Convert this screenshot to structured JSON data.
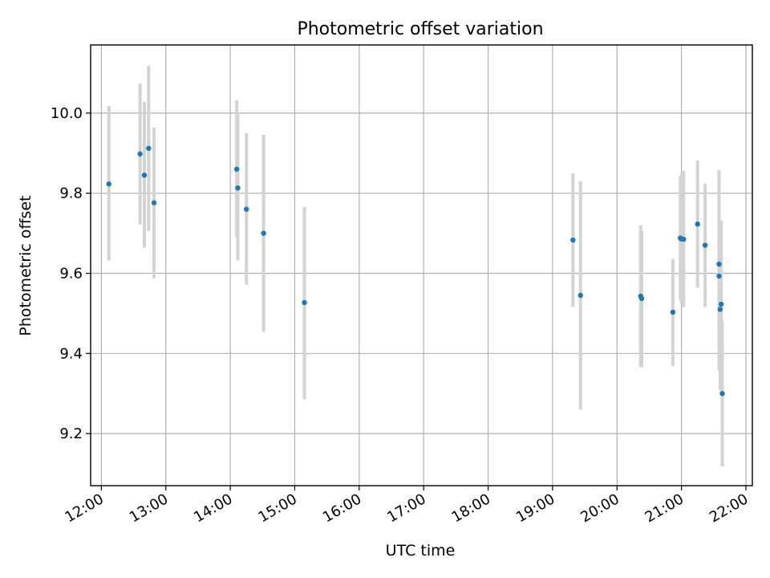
{
  "chart_data": {
    "type": "scatter",
    "title": "Photometric offset variation",
    "xlabel": "UTC time",
    "ylabel": "Photometric offset",
    "xlim": [
      "11:50",
      "22:06"
    ],
    "ylim": [
      9.07,
      10.17
    ],
    "grid": true,
    "x_ticks": [
      "12:00",
      "13:00",
      "14:00",
      "15:00",
      "16:00",
      "17:00",
      "18:00",
      "19:00",
      "20:00",
      "21:00",
      "22:00"
    ],
    "y_ticks": [
      9.2,
      9.4,
      9.6,
      9.8,
      10.0
    ],
    "y_tick_labels": [
      "9.2",
      "9.4",
      "9.6",
      "9.8",
      "10.0"
    ],
    "marker_color": "#1f77b4",
    "errorbar_color": "#d3d3d3",
    "points": [
      {
        "x": "12:07",
        "y": 9.823,
        "lo": 9.632,
        "hi": 10.018
      },
      {
        "x": "12:36",
        "y": 9.898,
        "lo": 9.722,
        "hi": 10.074
      },
      {
        "x": "12:40",
        "y": 9.845,
        "lo": 9.664,
        "hi": 10.028
      },
      {
        "x": "12:44",
        "y": 9.912,
        "lo": 9.706,
        "hi": 10.118
      },
      {
        "x": "12:49",
        "y": 9.776,
        "lo": 9.588,
        "hi": 9.964
      },
      {
        "x": "14:06",
        "y": 9.86,
        "lo": 9.69,
        "hi": 10.032
      },
      {
        "x": "14:07",
        "y": 9.813,
        "lo": 9.632,
        "hi": 9.996
      },
      {
        "x": "14:15",
        "y": 9.76,
        "lo": 9.572,
        "hi": 9.95
      },
      {
        "x": "14:31",
        "y": 9.7,
        "lo": 9.454,
        "hi": 9.946
      },
      {
        "x": "15:09",
        "y": 9.527,
        "lo": 9.286,
        "hi": 9.766
      },
      {
        "x": "19:19",
        "y": 9.683,
        "lo": 9.516,
        "hi": 9.85
      },
      {
        "x": "19:26",
        "y": 9.545,
        "lo": 9.26,
        "hi": 9.83
      },
      {
        "x": "20:22",
        "y": 9.543,
        "lo": 9.366,
        "hi": 9.72
      },
      {
        "x": "20:23",
        "y": 9.537,
        "lo": 9.366,
        "hi": 9.706
      },
      {
        "x": "20:52",
        "y": 9.503,
        "lo": 9.368,
        "hi": 9.636
      },
      {
        "x": "20:59",
        "y": 9.688,
        "lo": 9.534,
        "hi": 9.842
      },
      {
        "x": "21:00",
        "y": 9.686,
        "lo": 9.524,
        "hi": 9.848
      },
      {
        "x": "21:02",
        "y": 9.685,
        "lo": 9.516,
        "hi": 9.856
      },
      {
        "x": "21:15",
        "y": 9.723,
        "lo": 9.564,
        "hi": 9.882
      },
      {
        "x": "21:22",
        "y": 9.67,
        "lo": 9.516,
        "hi": 9.824
      },
      {
        "x": "21:35",
        "y": 9.623,
        "lo": 9.388,
        "hi": 9.858
      },
      {
        "x": "21:35",
        "y": 9.593,
        "lo": 9.358,
        "hi": 9.828
      },
      {
        "x": "21:36",
        "y": 9.51,
        "lo": 9.31,
        "hi": 9.71
      },
      {
        "x": "21:37",
        "y": 9.523,
        "lo": 9.306,
        "hi": 9.732
      },
      {
        "x": "21:38",
        "y": 9.3,
        "lo": 9.118,
        "hi": 9.482
      }
    ]
  }
}
